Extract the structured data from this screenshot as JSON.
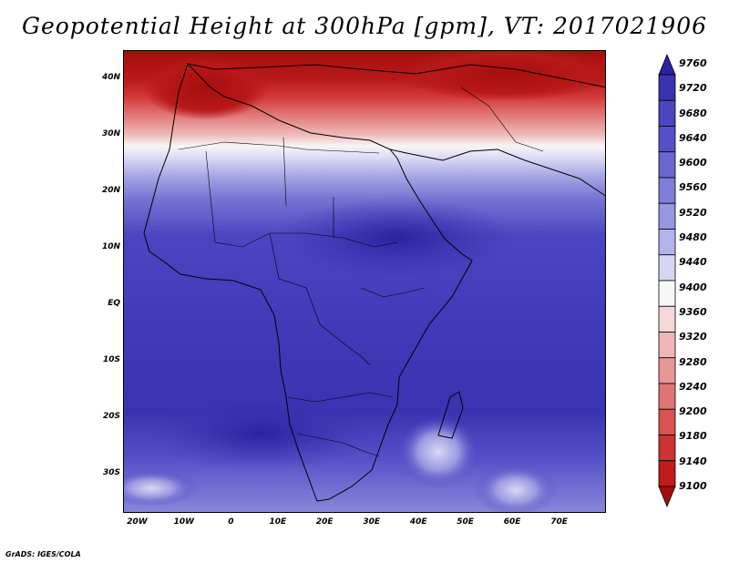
{
  "title": "Geopotential Height at 300hPa [gpm], VT: 2017021906",
  "footer": "GrADS: IGES/COLA",
  "map": {
    "lon_range": [
      -23,
      80
    ],
    "lat_range": [
      -37,
      45
    ],
    "lon_ticks": [
      {
        "lon": -20,
        "label": "20W"
      },
      {
        "lon": -10,
        "label": "10W"
      },
      {
        "lon": 0,
        "label": "0"
      },
      {
        "lon": 10,
        "label": "10E"
      },
      {
        "lon": 20,
        "label": "20E"
      },
      {
        "lon": 30,
        "label": "30E"
      },
      {
        "lon": 40,
        "label": "40E"
      },
      {
        "lon": 50,
        "label": "50E"
      },
      {
        "lon": 60,
        "label": "60E"
      },
      {
        "lon": 70,
        "label": "70E"
      }
    ],
    "lat_ticks": [
      {
        "lat": 40,
        "label": "40N"
      },
      {
        "lat": 30,
        "label": "30N"
      },
      {
        "lat": 20,
        "label": "20N"
      },
      {
        "lat": 10,
        "label": "10N"
      },
      {
        "lat": 0,
        "label": "EQ"
      },
      {
        "lat": -10,
        "label": "10S"
      },
      {
        "lat": -20,
        "label": "20S"
      },
      {
        "lat": -30,
        "label": "30S"
      }
    ]
  },
  "colorbar": {
    "levels": [
      "9760",
      "9720",
      "9680",
      "9640",
      "9600",
      "9560",
      "9520",
      "9480",
      "9440",
      "9400",
      "9360",
      "9320",
      "9280",
      "9240",
      "9200",
      "9180",
      "9140",
      "9100"
    ],
    "colors": [
      "#2a22a0",
      "#3a33b0",
      "#4a45c0",
      "#5550c8",
      "#6a66d0",
      "#7f7ed8",
      "#9796e0",
      "#b3b3ea",
      "#d6d6f4",
      "#f7f7f7",
      "#f6d8d8",
      "#efb6b6",
      "#e89696",
      "#e07474",
      "#d95252",
      "#cf3232",
      "#c01c1c",
      "#a50e0e"
    ]
  }
}
